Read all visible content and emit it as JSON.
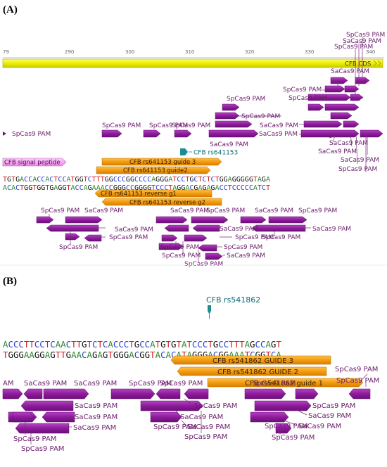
{
  "panel_a": {
    "label": "(A)",
    "ruler": {
      "ticks": [
        "79",
        "290",
        "300",
        "310",
        "320",
        "330",
        "340"
      ]
    },
    "cds_label": "CFB CDS",
    "signal_peptide_label": "CFB signal peptide",
    "snp_label": "CFB rs641153",
    "guides": [
      "CFB rs641153 guide 3",
      "CFB rs641153 guide2",
      "CFB rs641153 reverse g1",
      "CFB rs641153 reverse g2"
    ],
    "seq_top": "TGTGACCACCACTCCATGGTCTTTGGCCCGGCCCCAGGGATCCTGCTCTCTGGAGGGGGTAGA",
    "seq_bottom": "ACACTGGTGGTGAGGTACCAGAAACCGGGCCGGGGTCCCTAGGACGAGAGACCTCCCCCATCT",
    "pam_labels": {
      "sp": "SpCas9 PAM",
      "sa": "SaCas9 PAM"
    }
  },
  "panel_b": {
    "label": "(B)",
    "snp_label": "CFB rs541862",
    "guides": [
      "CFB rs541862 GUIDE 3",
      "CFB rs541862 GUIDE 2",
      "CFB rs541862 guide 1"
    ],
    "seq_top": "ACCCTTCCTCAACTTGTCTCACCCTGCCATGTGTATCCCTGCCTTTAGCCAGT",
    "seq_bottom": "TGGGAAGGAGTTGAACAGAGTGGGACGGTACACATAGGGACGGAAATCGGTCA",
    "pam_labels": {
      "sp": "SpCas9 PAM",
      "sa": "SaCas9 PAM",
      "pam_cut": "AM"
    }
  },
  "colors": {
    "pam_fill": "#8e1b9c",
    "pam_stroke": "#5e0f6a",
    "guide_fill": "#f29c10",
    "cds_fill": "#f2f20a",
    "signal_fill": "#f3a4f0",
    "snp_fill": "#1c8c93",
    "label_color": "#6a1b6a"
  }
}
